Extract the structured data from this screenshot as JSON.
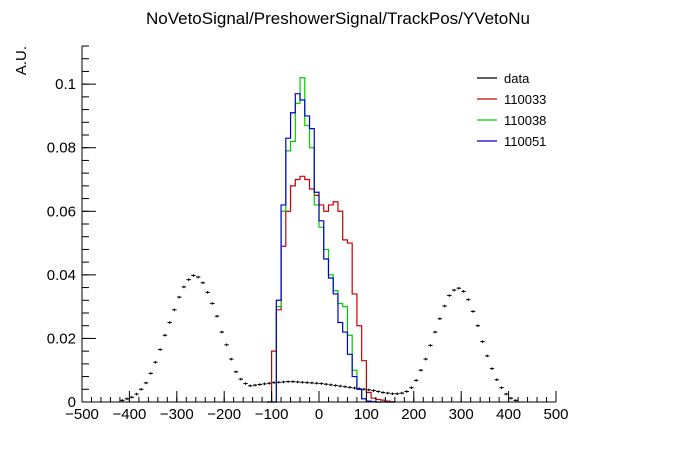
{
  "chart_data": {
    "type": "line",
    "title": "NoVetoSignal/PreshowerSignal/TrackPos/YVetoNu",
    "xlabel": "",
    "ylabel": "A.U.",
    "xlim": [
      -500,
      500
    ],
    "ylim": [
      0,
      0.112
    ],
    "x_ticks": [
      -500,
      -400,
      -300,
      -200,
      -100,
      0,
      100,
      200,
      300,
      400,
      500
    ],
    "x_tick_labels": [
      "−500",
      "−400",
      "−300",
      "−200",
      "−100",
      "0",
      "100",
      "200",
      "300",
      "400",
      "500"
    ],
    "y_ticks": [
      0,
      0.02,
      0.04,
      0.06,
      0.08,
      0.1
    ],
    "y_tick_labels": [
      "0",
      "0.02",
      "0.04",
      "0.06",
      "0.08",
      "0.1"
    ],
    "grid": false,
    "legend_position": "top-right",
    "bin_width": 10,
    "legend": [
      {
        "label": "data",
        "color": "#000000"
      },
      {
        "label": "110033",
        "color": "#cc0000"
      },
      {
        "label": "110038",
        "color": "#00cc00"
      },
      {
        "label": "110051",
        "color": "#0000cc"
      }
    ],
    "series": [
      {
        "name": "data",
        "style": "points",
        "color": "#000000",
        "x": [
          -415,
          -405,
          -395,
          -385,
          -375,
          -365,
          -355,
          -345,
          -335,
          -325,
          -315,
          -305,
          -295,
          -285,
          -275,
          -265,
          -255,
          -245,
          -235,
          -225,
          -215,
          -205,
          -195,
          -185,
          -175,
          -165,
          -155,
          -145,
          -135,
          -125,
          -115,
          -105,
          -95,
          -85,
          -75,
          -65,
          -55,
          -45,
          -35,
          -25,
          -15,
          -5,
          5,
          15,
          25,
          35,
          45,
          55,
          65,
          75,
          85,
          95,
          105,
          115,
          125,
          135,
          145,
          155,
          165,
          175,
          185,
          195,
          205,
          215,
          225,
          235,
          245,
          255,
          265,
          275,
          285,
          295,
          305,
          315,
          325,
          335,
          345,
          355,
          365,
          375,
          385,
          395,
          405,
          415
        ],
        "y": [
          0.0005,
          0.001,
          0.0015,
          0.0025,
          0.004,
          0.006,
          0.009,
          0.0125,
          0.0165,
          0.021,
          0.025,
          0.029,
          0.033,
          0.0362,
          0.0385,
          0.0398,
          0.0393,
          0.0375,
          0.0345,
          0.031,
          0.027,
          0.022,
          0.018,
          0.0135,
          0.0095,
          0.0072,
          0.0058,
          0.0051,
          0.0053,
          0.0055,
          0.0057,
          0.0059,
          0.0061,
          0.0062,
          0.0063,
          0.0064,
          0.0064,
          0.0063,
          0.0062,
          0.0061,
          0.006,
          0.0059,
          0.0058,
          0.0056,
          0.0054,
          0.0052,
          0.005,
          0.0048,
          0.0046,
          0.0044,
          0.0042,
          0.004,
          0.0038,
          0.0036,
          0.0033,
          0.003,
          0.0028,
          0.0026,
          0.0026,
          0.0028,
          0.0033,
          0.0045,
          0.0068,
          0.01,
          0.0135,
          0.0178,
          0.022,
          0.0262,
          0.0302,
          0.0335,
          0.0352,
          0.0358,
          0.0348,
          0.0322,
          0.0285,
          0.024,
          0.019,
          0.0145,
          0.0105,
          0.007,
          0.0045,
          0.0025,
          0.0012,
          0.0005
        ]
      },
      {
        "name": "110033",
        "style": "hist",
        "color": "#cc0000",
        "x": [
          -105,
          -95,
          -85,
          -75,
          -65,
          -55,
          -45,
          -35,
          -25,
          -15,
          -5,
          5,
          15,
          25,
          35,
          45,
          55,
          65,
          75,
          85,
          95,
          105,
          115,
          125,
          135,
          145,
          155
        ],
        "y": [
          0.0,
          0.016,
          0.029,
          0.049,
          0.06,
          0.068,
          0.07,
          0.071,
          0.07,
          0.067,
          0.065,
          0.062,
          0.06,
          0.062,
          0.063,
          0.06,
          0.051,
          0.05,
          0.034,
          0.024,
          0.013,
          0.003,
          0.0012,
          0.0008,
          0.0006,
          0.0003,
          0.0001
        ]
      },
      {
        "name": "110038",
        "style": "hist",
        "color": "#00cc00",
        "x": [
          -105,
          -95,
          -85,
          -75,
          -65,
          -55,
          -45,
          -35,
          -25,
          -15,
          -5,
          5,
          15,
          25,
          35,
          45,
          55,
          65,
          75,
          85,
          95,
          105,
          115,
          125,
          135,
          145,
          155
        ],
        "y": [
          0.0,
          0.0,
          0.03,
          0.06,
          0.079,
          0.082,
          0.094,
          0.102,
          0.087,
          0.08,
          0.062,
          0.055,
          0.048,
          0.04,
          0.035,
          0.031,
          0.03,
          0.021,
          0.01,
          0.004,
          0.001,
          0.0003,
          0.0001,
          0.0,
          0.0,
          0.0,
          0.0
        ]
      },
      {
        "name": "110051",
        "style": "hist",
        "color": "#0000cc",
        "x": [
          -105,
          -95,
          -85,
          -75,
          -65,
          -55,
          -45,
          -35,
          -25,
          -15,
          -5,
          5,
          15,
          25,
          35,
          45,
          55,
          65,
          75,
          85,
          95,
          105,
          115,
          125,
          135,
          145,
          155
        ],
        "y": [
          0.0,
          0.0,
          0.032,
          0.062,
          0.083,
          0.091,
          0.097,
          0.095,
          0.09,
          0.086,
          0.066,
          0.057,
          0.045,
          0.039,
          0.034,
          0.025,
          0.022,
          0.015,
          0.008,
          0.004,
          0.001,
          0.0003,
          0.0001,
          0.0,
          0.0,
          0.0,
          0.0
        ]
      }
    ]
  }
}
